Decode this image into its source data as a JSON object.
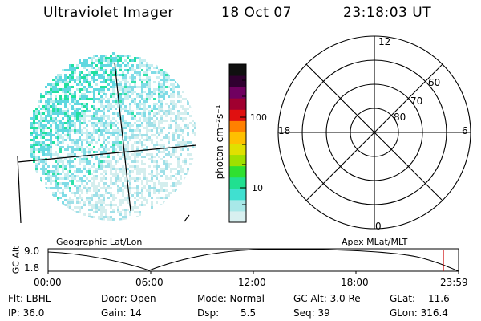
{
  "header": {
    "title": "Ultraviolet Imager",
    "date": "18 Oct 07",
    "time": "23:18:03 UT"
  },
  "colorbar": {
    "label": "photon cm⁻²s⁻¹",
    "ticks": [
      "100",
      "10"
    ],
    "colors": [
      "#d8f0f0",
      "#a8e8e8",
      "#40e0d0",
      "#20e090",
      "#30e030",
      "#a0e000",
      "#e0e000",
      "#ffc000",
      "#ff8000",
      "#e01010",
      "#a00030",
      "#700060",
      "#300030",
      "#101010"
    ]
  },
  "polar": {
    "hour_labels": [
      "12",
      "18",
      "6",
      "0"
    ],
    "lat_labels": [
      "60",
      "70",
      "80"
    ]
  },
  "timeline": {
    "left_label": "Geographic Lat/Lon",
    "right_label": "Apex MLat/MLT",
    "y_axis_label": "GC Alt",
    "y_ticks": [
      "9.0",
      "1.8"
    ],
    "x_ticks": [
      "00:00",
      "06:00",
      "12:00",
      "18:00",
      "23:59"
    ],
    "marker_color": "#cc0000"
  },
  "footer": {
    "row1": [
      "Flt: LBHL",
      "Door: Open",
      "Mode: Normal",
      "GC Alt: 3.0 Re",
      "GLat:",
      "11.6"
    ],
    "row2": [
      "IP: 36.0",
      "Gain: 14",
      "Dsp:",
      "5.5",
      "Seq: 39",
      "GLon: 316.4"
    ]
  }
}
